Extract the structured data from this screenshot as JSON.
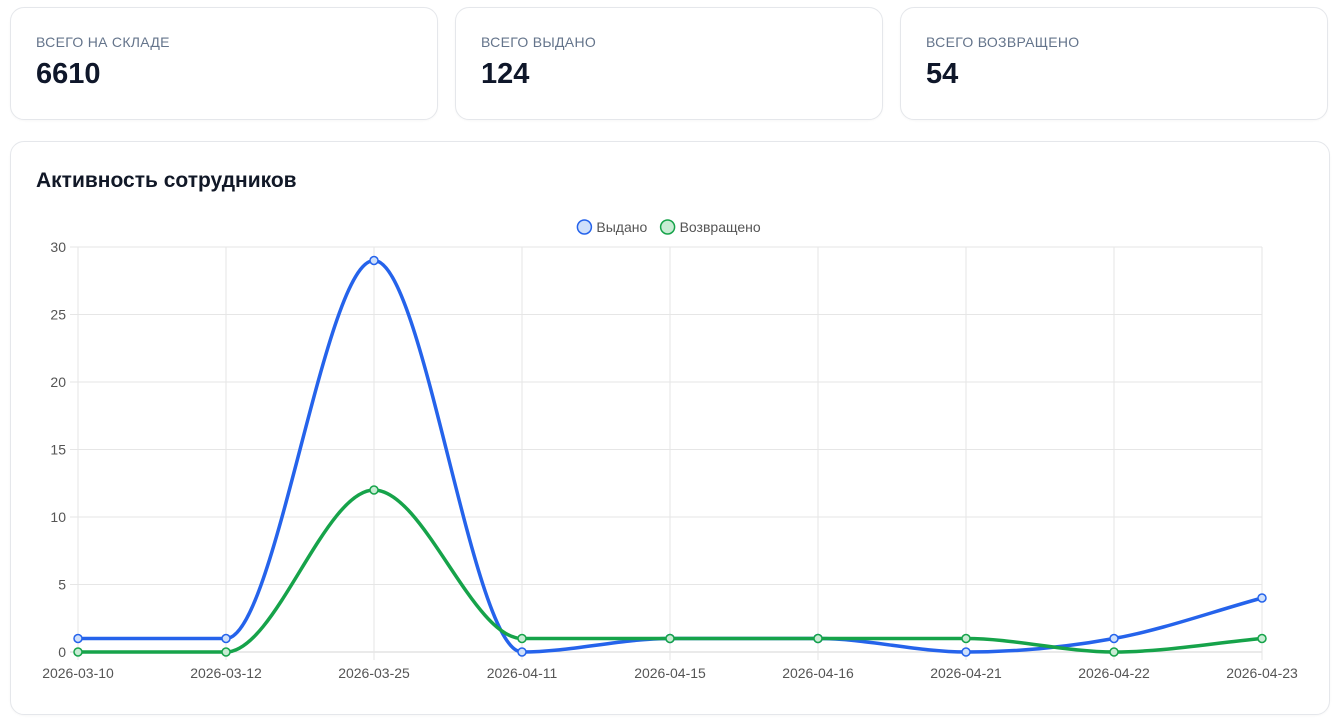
{
  "stats": [
    {
      "label": "Всего на складе",
      "value": "6610"
    },
    {
      "label": "Всего выдано",
      "value": "124"
    },
    {
      "label": "Всего возвращено",
      "value": "54"
    }
  ],
  "chart_title": "Активность сотрудников",
  "chart_data": {
    "type": "line",
    "title": "Активность сотрудников",
    "categories": [
      "2026-03-10",
      "2026-03-12",
      "2026-03-25",
      "2026-04-11",
      "2026-04-15",
      "2026-04-16",
      "2026-04-21",
      "2026-04-22",
      "2026-04-23"
    ],
    "series": [
      {
        "name": "Выдано",
        "values": [
          1,
          1,
          29,
          0,
          1,
          1,
          0,
          1,
          4
        ],
        "color": "#2563eb",
        "fill": "#cfe0fb"
      },
      {
        "name": "Возвращено",
        "values": [
          0,
          0,
          12,
          1,
          1,
          1,
          1,
          0,
          1
        ],
        "color": "#16a34a",
        "fill": "#c8ecd4"
      }
    ],
    "ylim": [
      0,
      30
    ],
    "yticks": [
      0,
      5,
      10,
      15,
      20,
      25,
      30
    ],
    "ytick_labels": [
      "0",
      "5",
      "10",
      "15",
      "20",
      "25",
      "30"
    ],
    "xlabel": "",
    "ylabel": "",
    "legend": "top-center",
    "grid": true
  }
}
